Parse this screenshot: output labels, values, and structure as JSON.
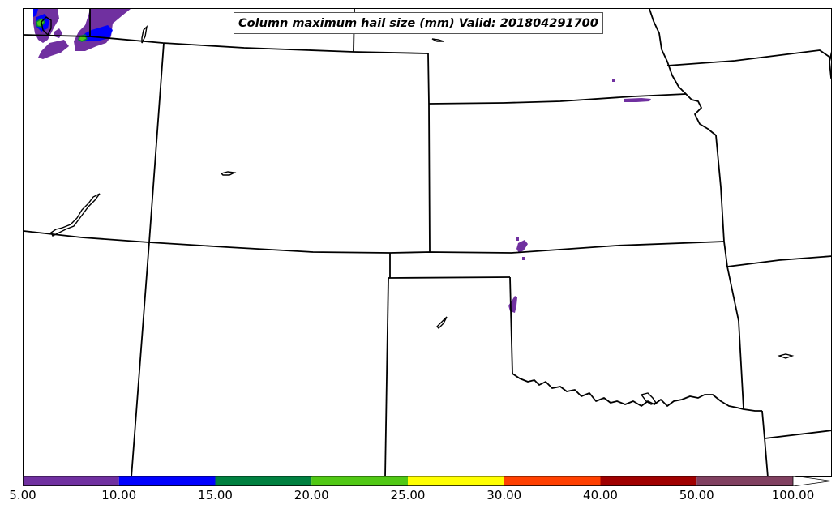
{
  "title": "Column maximum hail size (mm) Valid: 201804291700",
  "colorbar": {
    "ticks": [
      "5.00",
      "10.00",
      "15.00",
      "20.00",
      "25.00",
      "30.00",
      "40.00",
      "50.00",
      "100.00"
    ],
    "colors": [
      "#7030a0",
      "#0000ff",
      "#008040",
      "#50c814",
      "#ffff00",
      "#ff4000",
      "#a00000",
      "#804060"
    ],
    "extend_color": "#ffffff"
  },
  "legend_colors": {
    "bin_5_10": "#7030a0",
    "bin_10_15": "#0000ff",
    "bin_15_20": "#008040",
    "bin_20_25": "#50c814"
  }
}
